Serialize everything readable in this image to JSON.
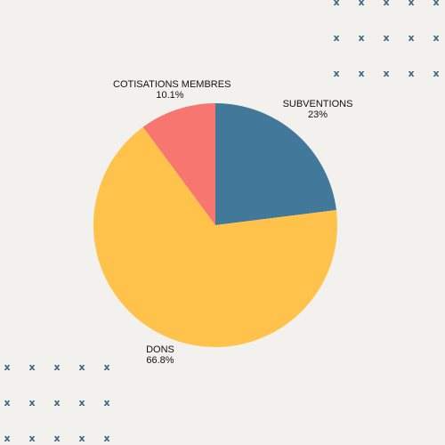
{
  "chart_data": {
    "type": "pie",
    "slices": [
      {
        "label": "SUBVENTIONS",
        "value": 23,
        "display": "23%",
        "color": "#42789a"
      },
      {
        "label": "DONS",
        "value": 66.8,
        "display": "66.8%",
        "color": "#ffc34b"
      },
      {
        "label": "COTISATIONS MEMBRES",
        "value": 10.1,
        "display": "10.1%",
        "color": "#f87670"
      }
    ],
    "start_angle": "12 o'clock",
    "direction": "clockwise",
    "legend": "none"
  },
  "decorations": {
    "pattern_glyph": "x",
    "pattern_color": "#3e6580",
    "background_color": "#f3f1ed",
    "pattern_placement": [
      "top-right",
      "bottom-left"
    ]
  }
}
